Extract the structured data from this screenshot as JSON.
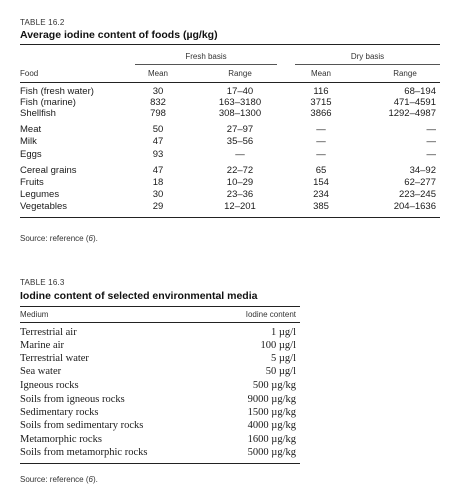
{
  "table1": {
    "label": "TABLE 16.2",
    "title": "Average iodine content of foods (µg/kg)",
    "group_fresh": "Fresh basis",
    "group_dry": "Dry basis",
    "col_food": "Food",
    "col_mean": "Mean",
    "col_range": "Range",
    "rows": [
      {
        "food": "Fish (fresh water)",
        "fmean": "30",
        "frange": "17–40",
        "dmean": "116",
        "drange": "68–194"
      },
      {
        "food": "Fish (marine)",
        "fmean": "832",
        "frange": "163–3180",
        "dmean": "3715",
        "drange": "471–4591"
      },
      {
        "food": "Shellfish",
        "fmean": "798",
        "frange": "308–1300",
        "dmean": "3866",
        "drange": "1292–4987"
      },
      {
        "food": "Meat",
        "fmean": "50",
        "frange": "27–97",
        "dmean": "—",
        "drange": "—"
      },
      {
        "food": "Milk",
        "fmean": "47",
        "frange": "35–56",
        "dmean": "—",
        "drange": "—"
      },
      {
        "food": "Eggs",
        "fmean": "93",
        "frange": "—",
        "dmean": "—",
        "drange": "—"
      },
      {
        "food": "Cereal grains",
        "fmean": "47",
        "frange": "22–72",
        "dmean": "65",
        "drange": "34–92"
      },
      {
        "food": "Fruits",
        "fmean": "18",
        "frange": "10–29",
        "dmean": "154",
        "drange": "62–277"
      },
      {
        "food": "Legumes",
        "fmean": "30",
        "frange": "23–36",
        "dmean": "234",
        "drange": "223–245"
      },
      {
        "food": "Vegetables",
        "fmean": "29",
        "frange": "12–201",
        "dmean": "385",
        "drange": "204–1636"
      }
    ],
    "source_prefix": "Source:  reference (",
    "source_ref": "6",
    "source_suffix": ")."
  },
  "table2": {
    "label": "TABLE 16.3",
    "title": "Iodine content of selected environmental media",
    "col_medium": "Medium",
    "col_content": "Iodine content",
    "rows": [
      {
        "medium": "Terrestrial air",
        "content": "1 µg/l"
      },
      {
        "medium": "Marine air",
        "content": "100 µg/l"
      },
      {
        "medium": "Terrestrial water",
        "content": "5 µg/l"
      },
      {
        "medium": "Sea water",
        "content": "50 µg/l"
      },
      {
        "medium": "Igneous rocks",
        "content": "500 µg/kg"
      },
      {
        "medium": "Soils from igneous rocks",
        "content": "9000 µg/kg"
      },
      {
        "medium": "Sedimentary rocks",
        "content": "1500 µg/kg"
      },
      {
        "medium": "Soils from sedimentary rocks",
        "content": "4000 µg/kg"
      },
      {
        "medium": "Metamorphic rocks",
        "content": "1600 µg/kg"
      },
      {
        "medium": "Soils from metamorphic rocks",
        "content": "5000 µg/kg"
      }
    ],
    "source_prefix": "Source:  reference (",
    "source_ref": "6",
    "source_suffix": ")."
  }
}
